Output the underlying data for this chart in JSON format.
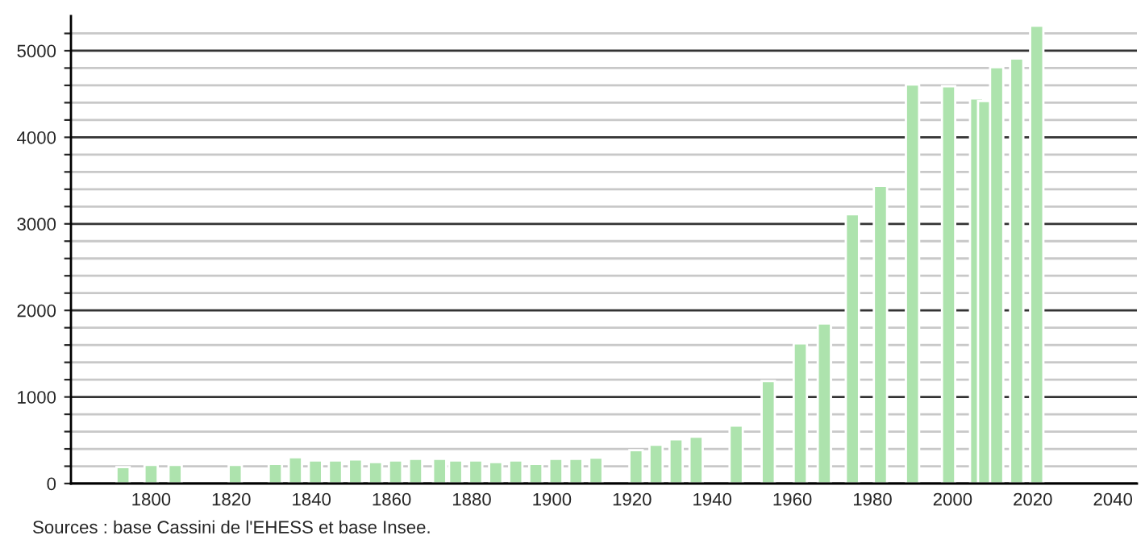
{
  "chart_data": {
    "type": "bar",
    "x": [
      1793,
      1800,
      1806,
      1821,
      1831,
      1836,
      1841,
      1846,
      1851,
      1856,
      1861,
      1866,
      1872,
      1876,
      1881,
      1886,
      1891,
      1896,
      1901,
      1906,
      1911,
      1921,
      1926,
      1931,
      1936,
      1946,
      1954,
      1962,
      1968,
      1975,
      1982,
      1990,
      1999,
      2006,
      2008,
      2011,
      2016,
      2021
    ],
    "values": [
      190,
      215,
      215,
      215,
      228,
      304,
      266,
      266,
      278,
      247,
      266,
      285,
      285,
      266,
      266,
      247,
      266,
      228,
      285,
      285,
      299,
      386,
      448,
      510,
      542,
      670,
      1183,
      1619,
      1849,
      3110,
      3440,
      4610,
      4590,
      4450,
      4420,
      4810,
      4910,
      5290
    ],
    "color": "#ade3ad",
    "xlim": [
      1780,
      2046
    ],
    "xticks": [
      1800,
      1820,
      1840,
      1860,
      1880,
      1900,
      1920,
      1940,
      1960,
      1980,
      2000,
      2020,
      2040
    ],
    "ylim": [
      0,
      5400
    ],
    "yticks": [
      0,
      {
        "value": 200,
        "label": null
      },
      {
        "value": 400,
        "label": null
      },
      {
        "value": 600,
        "label": null
      },
      {
        "value": 800,
        "label": null
      },
      1000,
      {
        "value": 1200,
        "label": null
      },
      {
        "value": 1400,
        "label": null
      },
      {
        "value": 1600,
        "label": null
      },
      {
        "value": 1800,
        "label": null
      },
      2000,
      {
        "value": 2200,
        "label": null
      },
      {
        "value": 2400,
        "label": null
      },
      {
        "value": 2600,
        "label": null
      },
      {
        "value": 2800,
        "label": null
      },
      3000,
      {
        "value": 3200,
        "label": null
      },
      {
        "value": 3400,
        "label": null
      },
      {
        "value": 3600,
        "label": null
      },
      {
        "value": 3800,
        "label": null
      },
      4000,
      {
        "value": 4200,
        "label": null
      },
      {
        "value": 4400,
        "label": null
      },
      {
        "value": 4600,
        "label": null
      },
      {
        "value": 4800,
        "label": null
      },
      5000,
      {
        "value": 5200,
        "label": null
      }
    ],
    "grid": "y",
    "annotations": [
      "Sources : base Cassini de l'EHESS et base Insee."
    ]
  }
}
